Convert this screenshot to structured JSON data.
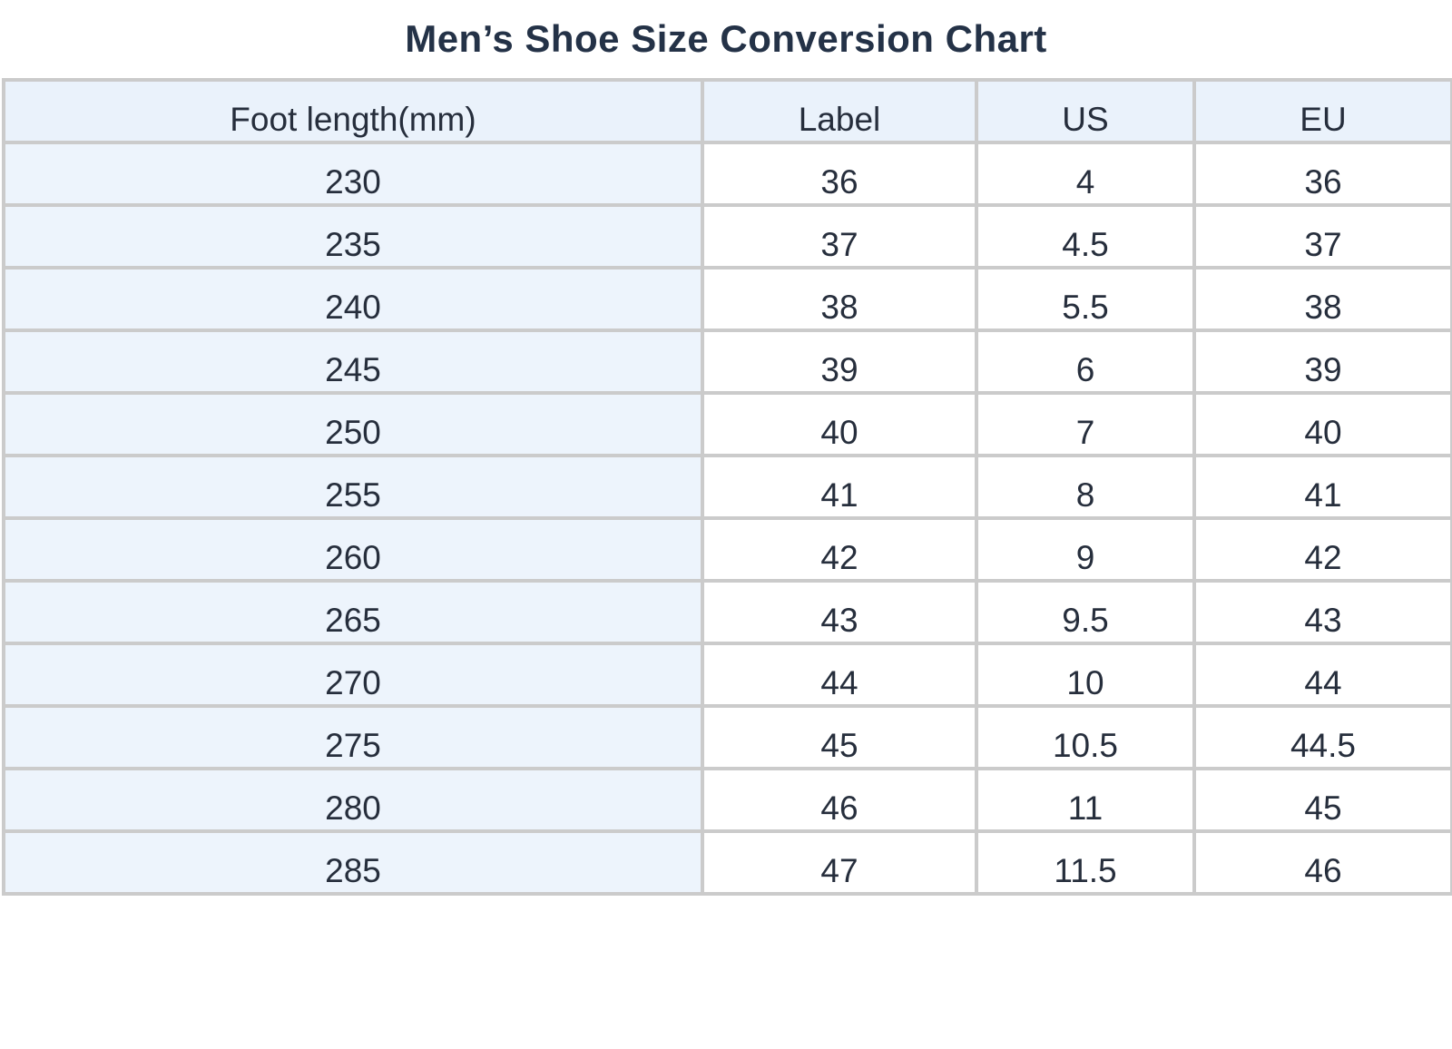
{
  "page": {
    "title": "Men’s Shoe Size Conversion Chart"
  },
  "table": {
    "headers": [
      "Foot length(mm)",
      "Label",
      "US",
      "EU"
    ],
    "column_keys": [
      "foot-length-mm",
      "label",
      "us",
      "eu"
    ],
    "rows": [
      [
        "230",
        "36",
        "4",
        "36"
      ],
      [
        "235",
        "37",
        "4.5",
        "37"
      ],
      [
        "240",
        "38",
        "5.5",
        "38"
      ],
      [
        "245",
        "39",
        "6",
        "39"
      ],
      [
        "250",
        "40",
        "7",
        "40"
      ],
      [
        "255",
        "41",
        "8",
        "41"
      ],
      [
        "260",
        "42",
        "9",
        "42"
      ],
      [
        "265",
        "43",
        "9.5",
        "43"
      ],
      [
        "270",
        "44",
        "10",
        "44"
      ],
      [
        "275",
        "45",
        "10.5",
        "44.5"
      ],
      [
        "280",
        "46",
        "11",
        "45"
      ],
      [
        "285",
        "47",
        "11.5",
        "46"
      ]
    ]
  },
  "chart_data": {
    "type": "table",
    "title": "Men’s Shoe Size Conversion Chart",
    "columns": [
      "Foot length(mm)",
      "Label",
      "US",
      "EU"
    ],
    "rows": [
      [
        "230",
        "36",
        "4",
        "36"
      ],
      [
        "235",
        "37",
        "4.5",
        "37"
      ],
      [
        "240",
        "38",
        "5.5",
        "38"
      ],
      [
        "245",
        "39",
        "6",
        "39"
      ],
      [
        "250",
        "40",
        "7",
        "40"
      ],
      [
        "255",
        "41",
        "8",
        "41"
      ],
      [
        "260",
        "42",
        "9",
        "42"
      ],
      [
        "265",
        "43",
        "9.5",
        "43"
      ],
      [
        "270",
        "44",
        "10",
        "44"
      ],
      [
        "275",
        "45",
        "10.5",
        "44.5"
      ],
      [
        "280",
        "46",
        "11",
        "45"
      ],
      [
        "285",
        "47",
        "11.5",
        "46"
      ]
    ],
    "layout": {
      "header_background": "#eaf2fb",
      "first_column_background": "#edf4fc",
      "grid": true
    }
  },
  "colors": {
    "header_bg": "#eaf2fb",
    "first_col_bg": "#edf4fc",
    "border": "#cbcbcb",
    "title_text": "#243247",
    "cell_text": "#262e3c",
    "page_bg": "#ffffff"
  }
}
